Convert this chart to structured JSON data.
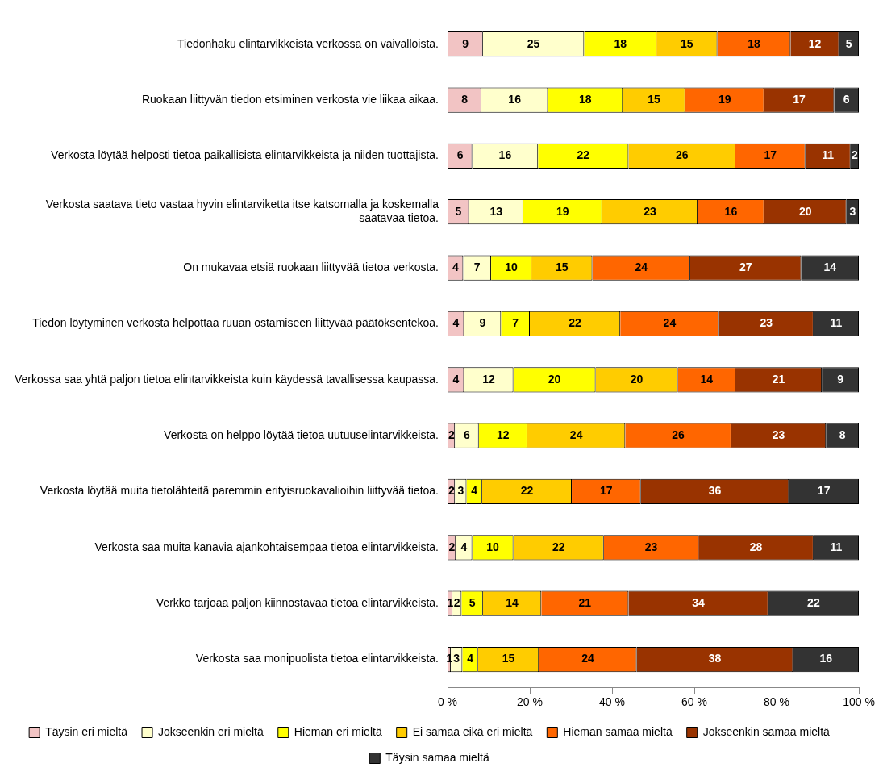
{
  "chart_data": {
    "type": "bar",
    "orientation": "horizontal",
    "stacked": true,
    "categories": [
      "Tiedonhaku elintarvikkeista verkossa on vaivalloista.",
      "Ruokaan liittyvän tiedon etsiminen verkosta vie liikaa aikaa.",
      "Verkosta löytää helposti tietoa paikallisista elintarvikkeista ja niiden tuottajista.",
      "Verkosta saatava tieto vastaa hyvin elintarviketta itse katsomalla ja koskemalla saatavaa tietoa.",
      "On mukavaa etsiä ruokaan liittyvää tietoa verkosta.",
      "Tiedon löytyminen verkosta helpottaa ruuan ostamiseen liittyvää päätöksentekoa.",
      "Verkossa saa yhtä paljon tietoa elintarvikkeista kuin käydessä tavallisessa kaupassa.",
      "Verkosta on helppo löytää tietoa uutuuselintarvikkeista.",
      "Verkosta löytää muita tietolähteitä paremmin erityisruokavalioihin liittyvää tietoa.",
      "Verkosta saa muita kanavia ajankohtaisempaa tietoa elintarvikkeista.",
      "Verkko tarjoaa paljon kiinnostavaa tietoa elintarvikkeista.",
      "Verkosta saa monipuolista tietoa elintarvikkeista."
    ],
    "series": [
      {
        "name": "Täysin eri mieltä",
        "color": "#f2c4c4",
        "values": [
          8.6,
          8.2,
          6,
          5.2,
          3.8,
          4,
          4,
          1.8,
          1.8,
          2,
          1.2,
          0.8
        ],
        "value_labels": [
          "9",
          "8",
          "6",
          "5",
          "4",
          "4",
          "4",
          "2",
          "2",
          "2",
          "1",
          "1"
        ]
      },
      {
        "name": "Jokseenkin eri mieltä",
        "color": "#ffffcc",
        "values": [
          24.6,
          16.2,
          16,
          13.2,
          6.8,
          9,
          12,
          5.8,
          2.8,
          4,
          2.2,
          2.8
        ],
        "value_labels": [
          "25",
          "16",
          "16",
          "13",
          "7",
          "9",
          "12",
          "6",
          "3",
          "4",
          "2",
          "3"
        ]
      },
      {
        "name": "Hieman eri mieltä",
        "color": "#ffff00",
        "values": [
          17.6,
          18.2,
          22,
          19.2,
          9.8,
          7,
          20,
          11.8,
          3.8,
          10,
          5.2,
          3.8
        ],
        "value_labels": [
          "18",
          "18",
          "22",
          "19",
          "10",
          "7",
          "20",
          "12",
          "4",
          "10",
          "5",
          "4"
        ]
      },
      {
        "name": "Ei samaa eikä eri mieltä",
        "color": "#ffcc00",
        "values": [
          14.8,
          15.2,
          26,
          23.2,
          14.8,
          22,
          20,
          23.8,
          21.8,
          22,
          14.2,
          14.8
        ],
        "value_labels": [
          "15",
          "15",
          "26",
          "23",
          "15",
          "22",
          "20",
          "24",
          "22",
          "22",
          "14",
          "15"
        ]
      },
      {
        "name": "Hieman samaa mieltä",
        "color": "#ff6600",
        "values": [
          17.8,
          19.2,
          17,
          16.2,
          23.8,
          24,
          14,
          25.8,
          16.8,
          23,
          21.2,
          23.8
        ],
        "value_labels": [
          "18",
          "19",
          "17",
          "16",
          "24",
          "24",
          "14",
          "26",
          "17",
          "23",
          "21",
          "24"
        ]
      },
      {
        "name": "Jokseenkin samaa mieltä",
        "color": "#993300",
        "values": [
          11.8,
          17,
          11,
          20,
          27,
          23,
          21,
          23,
          36,
          28,
          34,
          38
        ],
        "value_labels": [
          "12",
          "17",
          "11",
          "20",
          "27",
          "23",
          "21",
          "23",
          "36",
          "28",
          "34",
          "38"
        ]
      },
      {
        "name": "Täysin samaa mieltä",
        "color": "#333333",
        "values": [
          4.8,
          6,
          2,
          3,
          14,
          11,
          9,
          8,
          17,
          11,
          22,
          16
        ],
        "value_labels": [
          "5",
          "6",
          "2",
          "3",
          "14",
          "11",
          "9",
          "8",
          "17",
          "11",
          "22",
          "16"
        ]
      }
    ],
    "xlim": [
      0,
      100
    ],
    "xticks": [
      {
        "value": 0,
        "label": "0 %"
      },
      {
        "value": 20,
        "label": "20 %"
      },
      {
        "value": 40,
        "label": "40 %"
      },
      {
        "value": 60,
        "label": "60 %"
      },
      {
        "value": 80,
        "label": "80 %"
      },
      {
        "value": 100,
        "label": "100 %"
      }
    ],
    "grid": false,
    "legend": "bottom"
  }
}
